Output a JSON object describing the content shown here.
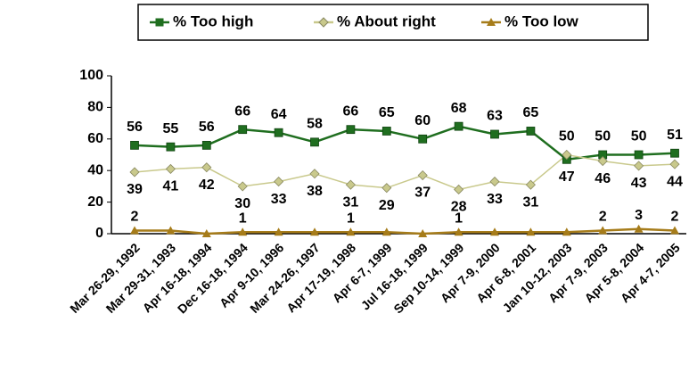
{
  "chart_data": {
    "type": "line",
    "categories": [
      "Mar 26-29, 1992",
      "Mar 29-31, 1993",
      "Apr 16-18, 1994",
      "Dec 16-18, 1994",
      "Apr 9-10, 1996",
      "Mar 24-26, 1997",
      "Apr 17-19, 1998",
      "Apr 6-7, 1999",
      "Jul 16-18, 1999",
      "Sep 10-14, 1999",
      "Apr 7-9, 2000",
      "Apr 6-8, 2001",
      "Jan 10-12, 2003",
      "Apr 7-9, 2003",
      "Apr 5-8, 2004",
      "Apr 4-7, 2005"
    ],
    "series": [
      {
        "name": "% Too high",
        "color": "#1f6e1f",
        "marker": "square",
        "values": [
          56,
          55,
          56,
          66,
          64,
          58,
          66,
          65,
          60,
          68,
          63,
          65,
          47,
          50,
          50,
          51
        ]
      },
      {
        "name": "% About right",
        "color": "#c9c98c",
        "marker": "diamond",
        "values": [
          39,
          41,
          42,
          30,
          33,
          38,
          31,
          29,
          37,
          28,
          33,
          31,
          50,
          46,
          43,
          44
        ]
      },
      {
        "name": "% Too low",
        "color": "#a67c1a",
        "marker": "triangle",
        "values": [
          2,
          2,
          0,
          1,
          1,
          1,
          1,
          1,
          0,
          1,
          1,
          1,
          1,
          2,
          3,
          2
        ],
        "value_labels": [
          "2",
          null,
          null,
          "1",
          null,
          null,
          "1",
          null,
          null,
          "1",
          null,
          null,
          null,
          "2",
          "3",
          "2"
        ]
      }
    ],
    "ylim": [
      0,
      100
    ],
    "yticks": [
      0,
      20,
      40,
      60,
      80,
      100
    ],
    "grid": false,
    "legend": "top"
  }
}
